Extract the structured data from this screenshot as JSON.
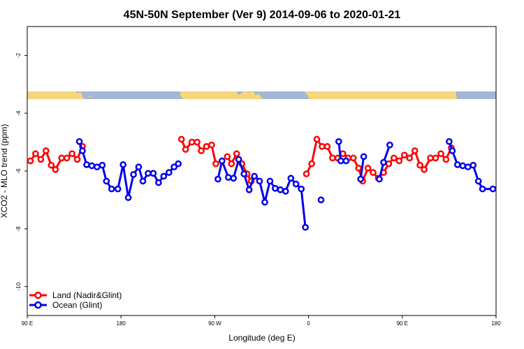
{
  "chart_data": {
    "type": "line",
    "title": "45N-50N September (Ver 9)   2014-09-06 to 2020-01-21",
    "xlabel": "Longitude (deg E)",
    "ylabel": "XCO2 - MLO trend (ppm)",
    "xlim": [
      90,
      540
    ],
    "ylim": [
      -11,
      -1
    ],
    "x_ticks": [
      {
        "value": 90,
        "label": "90 E"
      },
      {
        "value": 180,
        "label": "180"
      },
      {
        "value": 270,
        "label": "90 W"
      },
      {
        "value": 360,
        "label": "0"
      },
      {
        "value": 450,
        "label": "90 E"
      },
      {
        "value": 540,
        "label": "180"
      }
    ],
    "y_ticks": [
      {
        "value": -2,
        "label": "-2"
      },
      {
        "value": -4,
        "label": "-4"
      },
      {
        "value": -6,
        "label": "-6"
      },
      {
        "value": -8,
        "label": "-8"
      },
      {
        "value": -10,
        "label": "-10"
      }
    ],
    "grid": false,
    "legend_position": "bottom-left",
    "colors": {
      "land": "#ff0000",
      "ocean": "#0000ee",
      "map_land": "#f5d67a",
      "map_ocean": "#a3b6d6"
    },
    "series": [
      {
        "name": "Land (Nadir&Glint)",
        "key": "land",
        "segments": [
          [
            [
              93,
              -5.65
            ],
            [
              98,
              -5.4
            ],
            [
              103,
              -5.6
            ],
            [
              108,
              -5.3
            ],
            [
              113,
              -5.8
            ],
            [
              117,
              -5.95
            ],
            [
              123,
              -5.55
            ],
            [
              128,
              -5.55
            ],
            [
              133,
              -5.4
            ],
            [
              138,
              -5.6
            ],
            [
              143,
              -5.15
            ]
          ],
          [
            [
              238,
              -4.9
            ],
            [
              242,
              -5.25
            ],
            [
              248,
              -5.0
            ],
            [
              253,
              -5.0
            ],
            [
              257,
              -5.3
            ],
            [
              262,
              -5.15
            ],
            [
              267,
              -5.1
            ],
            [
              271,
              -5.75
            ]
          ],
          [
            [
              282,
              -5.5
            ],
            [
              286,
              -5.75
            ],
            [
              291,
              -5.4
            ],
            [
              296,
              -5.75
            ],
            [
              301,
              -6.1
            ],
            [
              305,
              -6.35
            ]
          ],
          [
            [
              358,
              -6.1
            ],
            [
              363,
              -5.75
            ],
            [
              368,
              -4.9
            ],
            [
              373,
              -5.15
            ],
            [
              378,
              -5.15
            ],
            [
              383,
              -5.55
            ],
            [
              388,
              -5.55
            ],
            [
              393,
              -5.4
            ],
            [
              398,
              -5.55
            ],
            [
              403,
              -5.55
            ],
            [
              408,
              -5.9
            ],
            [
              412,
              -6.35
            ],
            [
              417,
              -5.9
            ],
            [
              422,
              -6.05
            ],
            [
              427,
              -6.25
            ],
            [
              432,
              -6.05
            ],
            [
              437,
              -5.75
            ],
            [
              442,
              -5.55
            ],
            [
              447,
              -5.65
            ],
            [
              452,
              -5.45
            ],
            [
              457,
              -5.55
            ],
            [
              462,
              -5.3
            ],
            [
              467,
              -5.8
            ],
            [
              471,
              -5.95
            ],
            [
              477,
              -5.55
            ],
            [
              482,
              -5.55
            ],
            [
              487,
              -5.4
            ],
            [
              492,
              -5.6
            ],
            [
              497,
              -5.2
            ]
          ]
        ]
      },
      {
        "name": "Ocean (Glint)",
        "key": "ocean",
        "segments": [
          [
            [
              140,
              -4.98
            ],
            [
              143,
              -5.3
            ],
            [
              147,
              -5.78
            ],
            [
              152,
              -5.82
            ],
            [
              157,
              -5.86
            ],
            [
              162,
              -5.8
            ],
            [
              166,
              -6.35
            ],
            [
              171,
              -6.62
            ],
            [
              177,
              -6.62
            ],
            [
              182,
              -5.78
            ],
            [
              187,
              -6.92
            ],
            [
              192,
              -6.12
            ],
            [
              197,
              -5.86
            ],
            [
              201,
              -6.35
            ],
            [
              206,
              -6.08
            ],
            [
              211,
              -6.08
            ],
            [
              216,
              -6.4
            ],
            [
              221,
              -6.18
            ],
            [
              226,
              -6.05
            ],
            [
              231,
              -5.86
            ],
            [
              235,
              -5.75
            ]
          ],
          [
            [
              273,
              -6.28
            ],
            [
              277,
              -5.65
            ],
            [
              283,
              -6.22
            ],
            [
              288,
              -6.25
            ],
            [
              293,
              -5.6
            ],
            [
              298,
              -6.1
            ],
            [
              303,
              -6.65
            ],
            [
              308,
              -6.18
            ],
            [
              313,
              -6.35
            ],
            [
              318,
              -7.08
            ],
            [
              323,
              -6.35
            ],
            [
              328,
              -6.6
            ],
            [
              333,
              -6.65
            ],
            [
              338,
              -6.7
            ],
            [
              343,
              -6.25
            ],
            [
              348,
              -6.45
            ],
            [
              353,
              -6.62
            ],
            [
              357,
              -7.95
            ]
          ],
          [
            [
              372,
              -7.0
            ]
          ],
          [
            [
              389,
              -4.98
            ],
            [
              391,
              -5.65
            ],
            [
              396,
              -5.65
            ]
          ],
          [
            [
              410,
              -6.28
            ],
            [
              413,
              -5.5
            ]
          ],
          [
            [
              428,
              -6.28
            ],
            [
              432,
              -5.7
            ],
            [
              438,
              -5.1
            ]
          ],
          [
            [
              495,
              -4.98
            ],
            [
              498,
              -5.3
            ],
            [
              503,
              -5.78
            ],
            [
              508,
              -5.82
            ],
            [
              513,
              -5.86
            ],
            [
              518,
              -5.8
            ],
            [
              523,
              -6.35
            ],
            [
              527,
              -6.62
            ],
            [
              537,
              -6.62
            ]
          ]
        ]
      }
    ]
  }
}
